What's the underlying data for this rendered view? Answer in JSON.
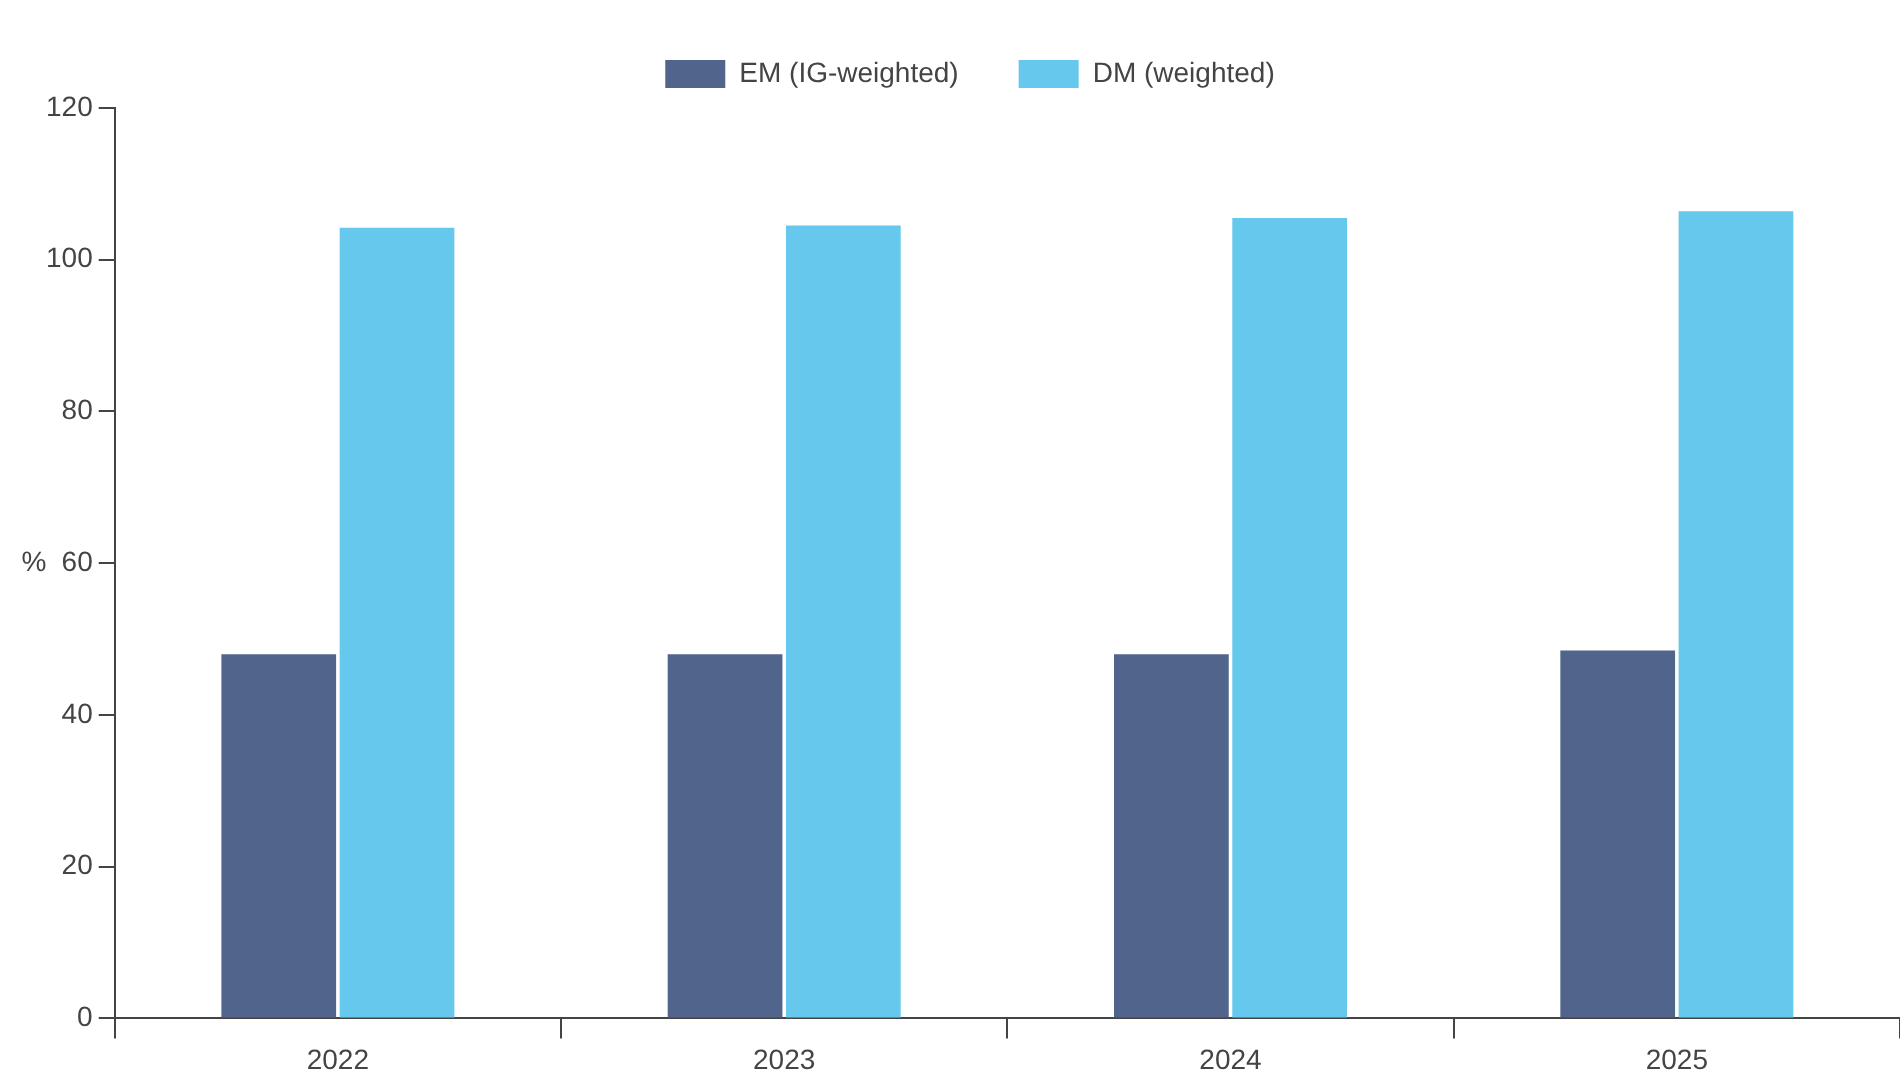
{
  "chart_data": {
    "type": "bar",
    "ylabel": "%",
    "categories": [
      "2022",
      "2023",
      "2024",
      "2025"
    ],
    "series": [
      {
        "name": "EM (IG-weighted)",
        "color": "#50648c",
        "values": [
          48.0,
          48.0,
          48.0,
          48.5
        ]
      },
      {
        "name": "DM (weighted)",
        "color": "#67c8ee",
        "values": [
          104.2,
          104.5,
          105.5,
          106.4
        ]
      }
    ],
    "ylim": [
      0,
      120
    ],
    "yticks": [
      0,
      20,
      40,
      60,
      80,
      100,
      120
    ],
    "grid": false,
    "legend": "top"
  }
}
